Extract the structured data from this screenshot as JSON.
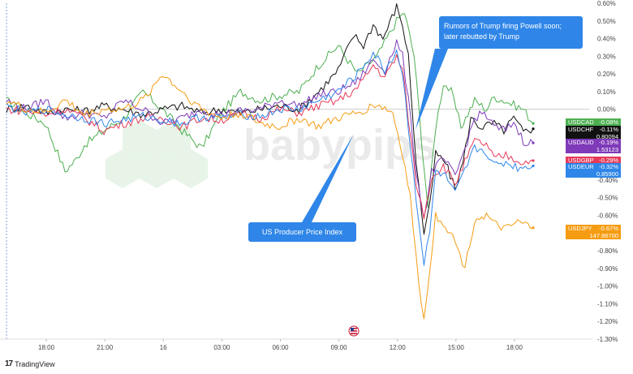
{
  "chart_data": {
    "type": "line",
    "x_ticks": [
      "18:00",
      "21:00",
      "16",
      "03:00",
      "06:00",
      "09:00",
      "12:00",
      "15:00",
      "18:00"
    ],
    "y_ticks": [
      "0.60%",
      "0.50%",
      "0.40%",
      "0.30%",
      "0.20%",
      "0.10%",
      "0.00%",
      "-0.10%",
      "-0.20%",
      "-0.30%",
      "-0.40%",
      "-0.50%",
      "-0.60%",
      "-0.70%",
      "-0.80%",
      "-0.90%",
      "-1.00%",
      "-1.10%",
      "-1.20%",
      "-1.30%"
    ],
    "ylim": [
      -1.3,
      0.6
    ],
    "x_range_hours": [
      17.0,
      42.0
    ],
    "series": [
      {
        "name": "USDCAD",
        "color": "#4caf50",
        "last_value": "-0.08%",
        "price": "",
        "points": [
          [
            17.0,
            0.05
          ],
          [
            18.0,
            -0.02
          ],
          [
            19.0,
            -0.08
          ],
          [
            20.0,
            -0.35
          ],
          [
            20.6,
            -0.28
          ],
          [
            21.0,
            -0.2
          ],
          [
            22.0,
            -0.12
          ],
          [
            23.0,
            -0.05
          ],
          [
            24.0,
            0.1
          ],
          [
            25.0,
            0.0
          ],
          [
            26.0,
            -0.12
          ],
          [
            27.0,
            -0.22
          ],
          [
            28.0,
            -0.02
          ],
          [
            29.0,
            0.1
          ],
          [
            30.0,
            0.05
          ],
          [
            31.0,
            0.08
          ],
          [
            32.0,
            0.1
          ],
          [
            33.0,
            0.25
          ],
          [
            34.0,
            0.36
          ],
          [
            35.0,
            0.2
          ],
          [
            36.0,
            0.3
          ],
          [
            37.0,
            0.5
          ],
          [
            37.4,
            0.55
          ],
          [
            37.9,
            0.3
          ],
          [
            38.3,
            -0.2
          ],
          [
            38.6,
            -0.55
          ],
          [
            39.0,
            -0.1
          ],
          [
            39.4,
            0.15
          ],
          [
            39.8,
            0.1
          ],
          [
            40.3,
            -0.1
          ],
          [
            41.0,
            0.05
          ],
          [
            41.6,
            0.0
          ],
          [
            42.0,
            0.07
          ],
          [
            42.5,
            0.05
          ],
          [
            43.5,
            0.0
          ],
          [
            44.0,
            -0.08
          ]
        ]
      },
      {
        "name": "USDCHF",
        "color": "#111111",
        "last_value": "-0.11%",
        "price": "0.80094",
        "points": [
          [
            17.0,
            0.0
          ],
          [
            18.0,
            0.02
          ],
          [
            19.0,
            -0.02
          ],
          [
            20.0,
            0.0
          ],
          [
            21.0,
            -0.01
          ],
          [
            22.0,
            0.02
          ],
          [
            23.0,
            0.0
          ],
          [
            24.0,
            -0.03
          ],
          [
            25.0,
            0.0
          ],
          [
            26.0,
            0.02
          ],
          [
            27.0,
            -0.02
          ],
          [
            28.0,
            0.0
          ],
          [
            29.0,
            -0.02
          ],
          [
            30.0,
            0.0
          ],
          [
            31.0,
            0.02
          ],
          [
            32.0,
            0.0
          ],
          [
            33.0,
            0.1
          ],
          [
            34.0,
            0.22
          ],
          [
            34.8,
            0.42
          ],
          [
            35.3,
            0.36
          ],
          [
            35.8,
            0.48
          ],
          [
            36.3,
            0.4
          ],
          [
            37.0,
            0.58
          ],
          [
            37.3,
            0.48
          ],
          [
            37.6,
            0.3
          ],
          [
            38.0,
            -0.3
          ],
          [
            38.4,
            -0.7
          ],
          [
            38.7,
            -0.55
          ],
          [
            39.0,
            -0.25
          ],
          [
            39.5,
            -0.3
          ],
          [
            40.0,
            -0.45
          ],
          [
            40.4,
            -0.3
          ],
          [
            40.8,
            -0.05
          ],
          [
            41.3,
            -0.1
          ],
          [
            42.0,
            -0.08
          ],
          [
            42.5,
            -0.12
          ],
          [
            43.0,
            -0.05
          ],
          [
            43.5,
            -0.13
          ],
          [
            44.0,
            -0.11
          ]
        ]
      },
      {
        "name": "USDAUD",
        "color": "#7e3ab9",
        "last_value": "-0.19%",
        "price": "1.53123",
        "points": [
          [
            17.0,
            0.05
          ],
          [
            18.0,
            0.0
          ],
          [
            19.0,
            0.05
          ],
          [
            20.0,
            -0.05
          ],
          [
            21.0,
            -0.02
          ],
          [
            22.0,
            -0.05
          ],
          [
            23.0,
            0.05
          ],
          [
            24.0,
            0.0
          ],
          [
            25.0,
            -0.08
          ],
          [
            26.0,
            -0.05
          ],
          [
            27.0,
            0.0
          ],
          [
            28.0,
            -0.03
          ],
          [
            29.0,
            -0.01
          ],
          [
            30.0,
            0.0
          ],
          [
            31.0,
            0.05
          ],
          [
            32.0,
            0.02
          ],
          [
            33.0,
            0.08
          ],
          [
            34.0,
            0.1
          ],
          [
            35.0,
            0.16
          ],
          [
            35.8,
            0.28
          ],
          [
            36.4,
            0.22
          ],
          [
            37.0,
            0.38
          ],
          [
            37.3,
            0.3
          ],
          [
            37.6,
            0.05
          ],
          [
            38.0,
            -0.35
          ],
          [
            38.4,
            -0.62
          ],
          [
            38.8,
            -0.35
          ],
          [
            39.4,
            -0.28
          ],
          [
            40.0,
            -0.38
          ],
          [
            40.5,
            -0.22
          ],
          [
            41.0,
            -0.05
          ],
          [
            41.5,
            -0.02
          ],
          [
            42.0,
            -0.1
          ],
          [
            42.6,
            -0.12
          ],
          [
            43.0,
            -0.07
          ],
          [
            43.5,
            -0.18
          ],
          [
            44.0,
            -0.19
          ]
        ]
      },
      {
        "name": "USDGBP",
        "color": "#e53958",
        "last_value": "-0.29%",
        "price": "",
        "points": [
          [
            17.0,
            0.0
          ],
          [
            18.0,
            -0.01
          ],
          [
            19.0,
            -0.03
          ],
          [
            20.0,
            0.0
          ],
          [
            21.0,
            -0.05
          ],
          [
            22.0,
            -0.12
          ],
          [
            23.0,
            -0.08
          ],
          [
            24.0,
            -0.05
          ],
          [
            25.0,
            -0.05
          ],
          [
            26.0,
            -0.1
          ],
          [
            27.0,
            -0.05
          ],
          [
            28.0,
            -0.06
          ],
          [
            29.0,
            -0.03
          ],
          [
            30.0,
            -0.05
          ],
          [
            31.0,
            0.0
          ],
          [
            32.0,
            -0.02
          ],
          [
            33.0,
            0.02
          ],
          [
            34.0,
            0.05
          ],
          [
            35.0,
            0.12
          ],
          [
            35.8,
            0.25
          ],
          [
            36.4,
            0.18
          ],
          [
            37.0,
            0.3
          ],
          [
            37.3,
            0.22
          ],
          [
            37.6,
            -0.05
          ],
          [
            38.0,
            -0.42
          ],
          [
            38.4,
            -0.6
          ],
          [
            38.8,
            -0.38
          ],
          [
            39.4,
            -0.32
          ],
          [
            40.0,
            -0.42
          ],
          [
            40.5,
            -0.3
          ],
          [
            41.0,
            -0.18
          ],
          [
            41.6,
            -0.2
          ],
          [
            42.0,
            -0.28
          ],
          [
            42.6,
            -0.26
          ],
          [
            43.0,
            -0.28
          ],
          [
            43.5,
            -0.3
          ],
          [
            44.0,
            -0.29
          ]
        ]
      },
      {
        "name": "USDEUR",
        "color": "#2f86e8",
        "last_value": "-0.32%",
        "price": "0.85900",
        "points": [
          [
            17.0,
            0.02
          ],
          [
            18.0,
            -0.02
          ],
          [
            19.0,
            0.0
          ],
          [
            20.0,
            -0.03
          ],
          [
            21.0,
            -0.05
          ],
          [
            22.0,
            -0.08
          ],
          [
            23.0,
            -0.06
          ],
          [
            24.0,
            -0.04
          ],
          [
            25.0,
            -0.06
          ],
          [
            26.0,
            -0.08
          ],
          [
            27.0,
            -0.04
          ],
          [
            28.0,
            -0.05
          ],
          [
            29.0,
            -0.03
          ],
          [
            30.0,
            -0.04
          ],
          [
            31.0,
            0.0
          ],
          [
            32.0,
            0.0
          ],
          [
            33.0,
            0.05
          ],
          [
            34.0,
            0.1
          ],
          [
            35.0,
            0.2
          ],
          [
            35.8,
            0.32
          ],
          [
            36.4,
            0.22
          ],
          [
            37.0,
            0.33
          ],
          [
            37.3,
            0.2
          ],
          [
            37.6,
            -0.1
          ],
          [
            38.0,
            -0.5
          ],
          [
            38.4,
            -0.88
          ],
          [
            38.7,
            -0.7
          ],
          [
            39.0,
            -0.35
          ],
          [
            39.5,
            -0.38
          ],
          [
            40.0,
            -0.48
          ],
          [
            40.5,
            -0.35
          ],
          [
            41.0,
            -0.22
          ],
          [
            41.6,
            -0.24
          ],
          [
            42.0,
            -0.32
          ],
          [
            42.6,
            -0.3
          ],
          [
            43.2,
            -0.33
          ],
          [
            44.0,
            -0.32
          ]
        ]
      },
      {
        "name": "USDJPY",
        "color": "#f59c12",
        "last_value": "-0.67%",
        "price": "147.86700",
        "points": [
          [
            17.0,
            0.05
          ],
          [
            18.0,
            0.0
          ],
          [
            19.0,
            -0.02
          ],
          [
            20.0,
            0.05
          ],
          [
            21.0,
            -0.03
          ],
          [
            22.0,
            0.0
          ],
          [
            23.0,
            0.0
          ],
          [
            24.0,
            0.05
          ],
          [
            25.0,
            0.2
          ],
          [
            26.0,
            0.1
          ],
          [
            27.0,
            0.0
          ],
          [
            28.0,
            -0.05
          ],
          [
            29.0,
            -0.02
          ],
          [
            30.0,
            -0.08
          ],
          [
            31.0,
            -0.1
          ],
          [
            32.0,
            -0.05
          ],
          [
            33.0,
            -0.1
          ],
          [
            34.0,
            -0.05
          ],
          [
            35.0,
            -0.02
          ],
          [
            36.0,
            0.03
          ],
          [
            36.8,
            -0.02
          ],
          [
            37.3,
            -0.25
          ],
          [
            37.7,
            -0.5
          ],
          [
            38.0,
            -0.85
          ],
          [
            38.4,
            -1.2
          ],
          [
            38.7,
            -0.9
          ],
          [
            39.0,
            -0.6
          ],
          [
            39.5,
            -0.65
          ],
          [
            40.0,
            -0.75
          ],
          [
            40.5,
            -0.9
          ],
          [
            41.0,
            -0.62
          ],
          [
            41.6,
            -0.6
          ],
          [
            42.0,
            -0.65
          ],
          [
            42.6,
            -0.68
          ],
          [
            43.2,
            -0.64
          ],
          [
            44.0,
            -0.67
          ]
        ]
      }
    ],
    "annotations": {
      "ppi": "US Producer Price Index",
      "powell_line1": "Rumors of Trump firing Powell soon;",
      "powell_line2": "later rebutted by Trump"
    },
    "colors": {
      "annotation_bg": "#2f86e8"
    }
  },
  "branding": {
    "name": "TradingView",
    "watermark": "babypips"
  }
}
